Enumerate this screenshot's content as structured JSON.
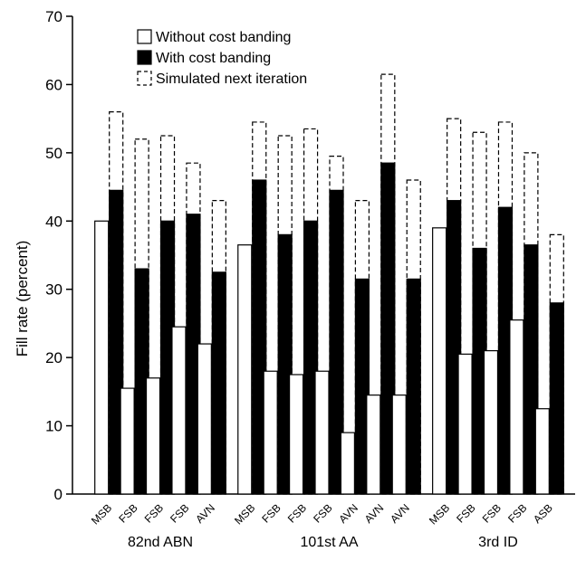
{
  "chart_data": {
    "type": "bar",
    "ylabel": "Fill rate (percent)",
    "xlabel": "",
    "ylim": [
      0,
      70
    ],
    "yticks": [
      0,
      10,
      20,
      30,
      40,
      50,
      60,
      70
    ],
    "grid": false,
    "legend_position": "top-left",
    "categories": [
      {
        "group": "82nd ABN",
        "label": "MSB"
      },
      {
        "group": "82nd ABN",
        "label": "FSB"
      },
      {
        "group": "82nd ABN",
        "label": "FSB"
      },
      {
        "group": "82nd ABN",
        "label": "FSB"
      },
      {
        "group": "82nd ABN",
        "label": "AVN"
      },
      {
        "group": "101st AA",
        "label": "MSB"
      },
      {
        "group": "101st AA",
        "label": "FSB"
      },
      {
        "group": "101st AA",
        "label": "FSB"
      },
      {
        "group": "101st AA",
        "label": "FSB"
      },
      {
        "group": "101st AA",
        "label": "AVN"
      },
      {
        "group": "101st AA",
        "label": "AVN"
      },
      {
        "group": "101st AA",
        "label": "AVN"
      },
      {
        "group": "3rd ID",
        "label": "MSB"
      },
      {
        "group": "3rd ID",
        "label": "FSB"
      },
      {
        "group": "3rd ID",
        "label": "FSB"
      },
      {
        "group": "3rd ID",
        "label": "FSB"
      },
      {
        "group": "3rd ID",
        "label": "ASB"
      }
    ],
    "groups": [
      "82nd ABN",
      "101st AA",
      "3rd ID"
    ],
    "series": [
      {
        "name": "Without cost banding",
        "style": "white",
        "values": [
          40,
          15.5,
          17,
          24.5,
          22,
          36.5,
          18,
          17.5,
          18,
          9,
          14.5,
          14.5,
          39,
          20.5,
          21,
          25.5,
          12.5
        ]
      },
      {
        "name": "With cost banding",
        "style": "black",
        "values": [
          44.5,
          33,
          40,
          41,
          32.5,
          46,
          38,
          40,
          44.5,
          31.5,
          48.5,
          31.5,
          43,
          36,
          42,
          36.5,
          28
        ]
      },
      {
        "name": "Simulated next iteration",
        "style": "dashed",
        "values": [
          56,
          52,
          52.5,
          48.5,
          43,
          54.5,
          52.5,
          53.5,
          49.5,
          43,
          61.5,
          46,
          55,
          53,
          54.5,
          50,
          38
        ]
      }
    ],
    "colors": {
      "white": "#ffffff",
      "black": "#000000",
      "dashed": "#000000"
    }
  }
}
